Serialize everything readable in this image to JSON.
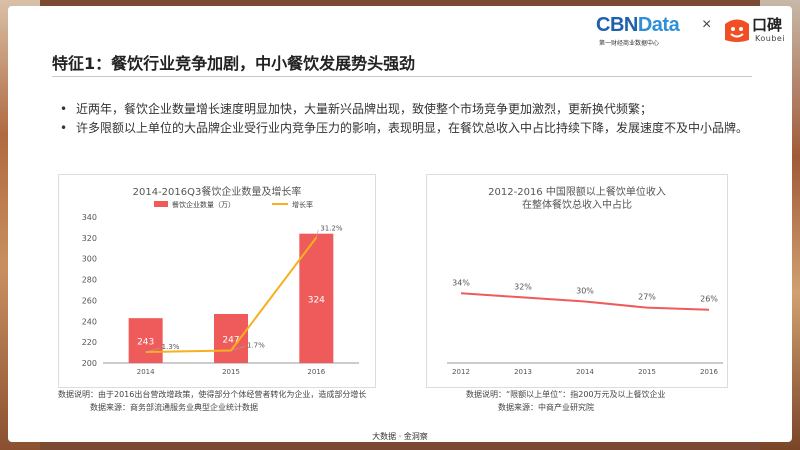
{
  "header": {
    "cbn_logo_text": "CBN",
    "cbn_logo_data": "Data",
    "cbn_logo_sub": "第一财经商业数据中心",
    "times": "×",
    "koubei_name": "口碑",
    "koubei_sub": "Koubei"
  },
  "title": "特征1：餐饮行业竞争加剧，中小餐饮发展势头强劲",
  "bullets": [
    "近两年，餐饮企业数量增长速度明显加快，大量新兴品牌出现，致使整个市场竞争更加激烈，更新换代频繁；",
    "许多限额以上单位的大品牌企业受行业内竞争压力的影响，表现明显，在餐饮总收入中占比持续下降，发展速度不及中小品牌。"
  ],
  "colors": {
    "bar": "#ef5b5b",
    "growth_line": "#f6b020",
    "share_line": "#ef5b5b"
  },
  "chart_data": [
    {
      "type": "bar",
      "title": "2014-2016Q3餐饮企业数量及增长率",
      "categories": [
        "2014",
        "2015",
        "2016"
      ],
      "series": [
        {
          "name": "餐饮企业数量（万）",
          "values": [
            243,
            247,
            324
          ],
          "value_labels": [
            "243",
            "247",
            "324"
          ]
        },
        {
          "name": "增长率",
          "type": "line",
          "values": [
            1.3,
            1.7,
            31.2
          ],
          "value_labels": [
            "1.3%",
            "1.7%",
            "31.2%"
          ]
        }
      ],
      "ylim": [
        200,
        340
      ],
      "yticks": [
        "200",
        "220",
        "240",
        "260",
        "280",
        "300",
        "320",
        "340"
      ],
      "legend": "top",
      "grid": false
    },
    {
      "type": "line",
      "title": [
        "2012-2016 中国限额以上餐饮单位收入",
        "在整体餐饮总收入中占比"
      ],
      "categories": [
        "2012",
        "2013",
        "2014",
        "2015",
        "2016"
      ],
      "values": [
        34,
        32,
        30,
        27,
        26
      ],
      "value_labels": [
        "34%",
        "32%",
        "30%",
        "27%",
        "26%"
      ],
      "grid": false
    }
  ],
  "notes": {
    "left_line1": "数据说明：由于2016出台营改增政策，使得部分个体经营者转化为企业，造成部分增长",
    "left_line2": "数据来源：商务部流通服务业典型企业统计数据",
    "right_line1": "数据说明：“限额以上单位”：指200万元及以上餐饮企业",
    "right_line2": "数据来源：中商产业研究院"
  },
  "footer": "大数据 · 金洞察"
}
